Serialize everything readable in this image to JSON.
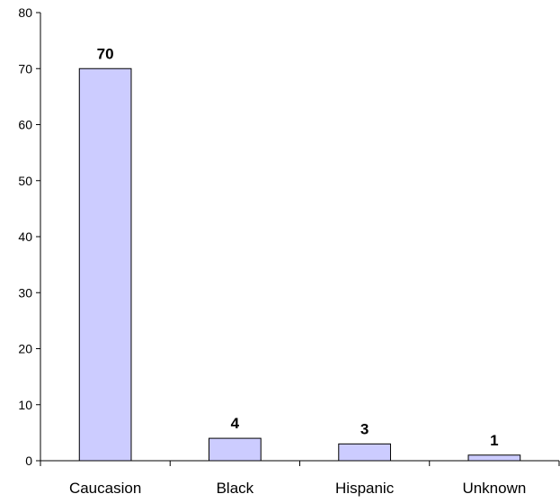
{
  "chart_data": {
    "type": "bar",
    "categories": [
      "Caucasion",
      "Black",
      "Hispanic",
      "Unknown"
    ],
    "values": [
      70,
      4,
      3,
      1
    ],
    "data_labels": [
      "70",
      "4",
      "3",
      "1"
    ],
    "title": "",
    "xlabel": "",
    "ylabel": "",
    "ylim": [
      0,
      80
    ],
    "yticks": [
      0,
      10,
      20,
      30,
      40,
      50,
      60,
      70,
      80
    ],
    "grid": false,
    "legend": "none",
    "colors": {
      "bar_fill": "#ccccff",
      "bar_stroke": "#000000",
      "axis": "#000000",
      "text": "#000000"
    }
  }
}
